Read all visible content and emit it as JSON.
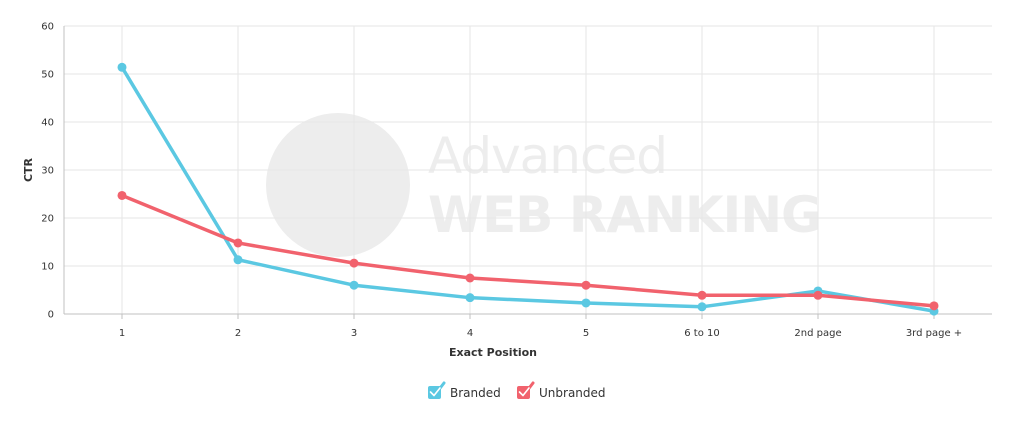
{
  "chart_data": {
    "type": "line",
    "categories": [
      "1",
      "2",
      "3",
      "4",
      "5",
      "6 to 10",
      "2nd page",
      "3rd page +"
    ],
    "series": [
      {
        "name": "Branded",
        "color": "#5bc8e2",
        "values": [
          51.4,
          11.3,
          6.0,
          3.4,
          2.3,
          1.5,
          4.8,
          0.6
        ]
      },
      {
        "name": "Unbranded",
        "color": "#f1626d",
        "values": [
          24.7,
          14.8,
          10.6,
          7.5,
          6.0,
          3.9,
          3.9,
          1.7
        ]
      }
    ],
    "xlabel": "Exact Position",
    "ylabel": "CTR",
    "ylim": [
      0,
      60
    ],
    "yticks": [
      0,
      10,
      20,
      30,
      40,
      50,
      60
    ],
    "grid": true,
    "legend": "bottom-center",
    "watermark": {
      "line1": "Advanced",
      "line2": "WEB RANKING"
    }
  }
}
